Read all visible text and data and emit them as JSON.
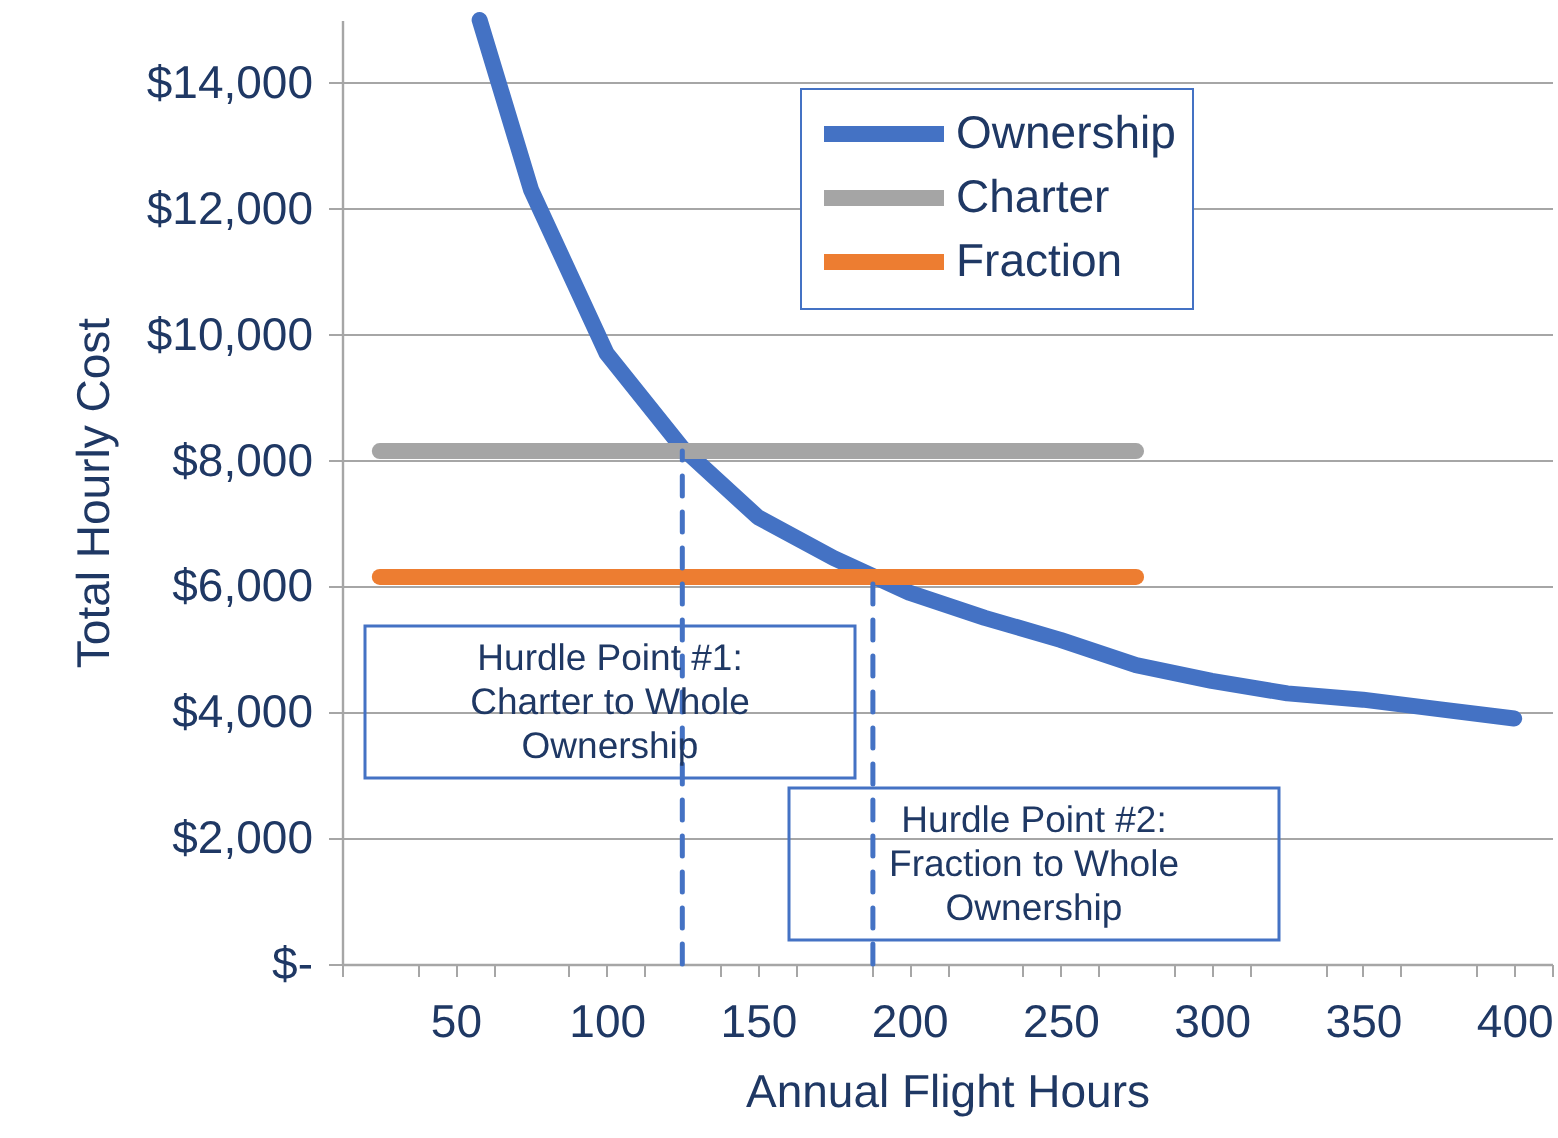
{
  "chart_data": {
    "type": "line",
    "xlabel": "Annual Flight Hours",
    "ylabel": "Total Hourly Cost",
    "xlim": [
      12.5,
      412.5
    ],
    "xticks": [
      {
        "value": 12.5,
        "label": null
      },
      {
        "value": 37.5,
        "label": null
      },
      50,
      {
        "value": 62.5,
        "label": null
      },
      {
        "value": 87.5,
        "label": null
      },
      100,
      {
        "value": 112.5,
        "label": null
      },
      {
        "value": 137.5,
        "label": null
      },
      150,
      {
        "value": 162.5,
        "label": null
      },
      {
        "value": 187.5,
        "label": null
      },
      200,
      {
        "value": 212.5,
        "label": null
      },
      {
        "value": 237.5,
        "label": null
      },
      250,
      {
        "value": 262.5,
        "label": null
      },
      {
        "value": 287.5,
        "label": null
      },
      300,
      {
        "value": 312.5,
        "label": null
      },
      {
        "value": 337.5,
        "label": null
      },
      350,
      {
        "value": 362.5,
        "label": null
      },
      {
        "value": 387.5,
        "label": null
      },
      400,
      {
        "value": 412.5,
        "label": null
      }
    ],
    "ylim": [
      0,
      15000
    ],
    "yticks": [
      {
        "value": 0,
        "label": "$-"
      },
      {
        "value": 2000,
        "label": "$2,000"
      },
      {
        "value": 4000,
        "label": "$4,000"
      },
      {
        "value": 6000,
        "label": "$6,000"
      },
      {
        "value": 8000,
        "label": "$8,000"
      },
      {
        "value": 10000,
        "label": "$10,000"
      },
      {
        "value": 12000,
        "label": "$12,000"
      },
      {
        "value": 14000,
        "label": "$14,000"
      }
    ],
    "grid": "y",
    "legend": "top right",
    "series": [
      {
        "name": "Ownership",
        "color": "#4472c4",
        "x": [
          58,
          75,
          100,
          125,
          150,
          175,
          200,
          225,
          250,
          275,
          300,
          325,
          350,
          375,
          400
        ],
        "values": [
          15000,
          12300,
          9700,
          8200,
          7100,
          6450,
          5900,
          5500,
          5150,
          4750,
          4500,
          4300,
          4200,
          4050,
          3900
        ]
      },
      {
        "name": "Charter",
        "color": "#a5a5a5",
        "x": [
          25,
          275
        ],
        "values": [
          8150,
          8150
        ]
      },
      {
        "name": "Fraction",
        "color": "#ed7d31",
        "x": [
          25,
          275
        ],
        "values": [
          6150,
          6150
        ]
      },
      {
        "color": "#4472c4",
        "line_style": "dashed",
        "x": [
          125,
          125
        ],
        "values": [
          0,
          8150
        ]
      },
      {
        "color": "#4472c4",
        "line_style": "dashed",
        "x": [
          188,
          188
        ],
        "values": [
          0,
          6150
        ]
      }
    ],
    "annotations": [
      "Hurdle Point #1:\nCharter to Whole\nOwnership",
      "Hurdle Point #2:\nFraction to Whole\nOwnership"
    ]
  }
}
